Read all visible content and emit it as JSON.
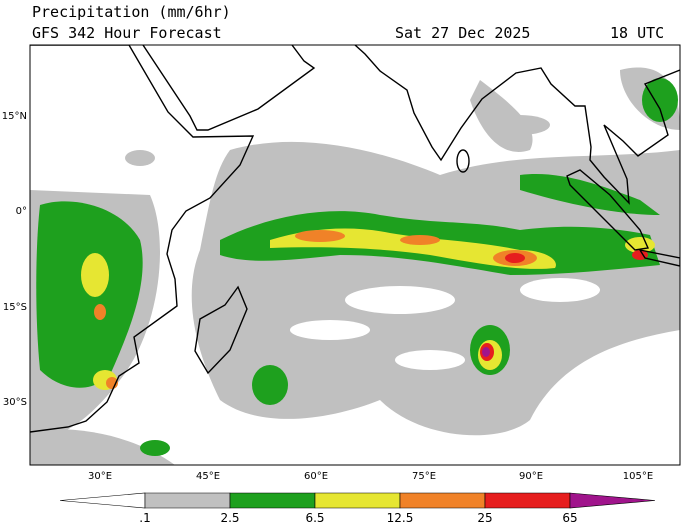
{
  "header": {
    "title": "Precipitation (mm/6hr)",
    "subtitle": "GFS 342 Hour Forecast",
    "date": "Sat 27 Dec 2025",
    "time": "18 UTC"
  },
  "map": {
    "lat_labels": [
      "15°N",
      "0°",
      "15°S",
      "30°S"
    ],
    "lon_labels": [
      "30°E",
      "45°E",
      "60°E",
      "75°E",
      "90°E",
      "105°E"
    ]
  },
  "colorbar": {
    "labels": [
      ".1",
      "2.5",
      "6.5",
      "12.5",
      "25",
      "65"
    ],
    "colors": [
      "#ffffff",
      "#c0c0c0",
      "#1ea01e",
      "#e6e632",
      "#f08228",
      "#e61e1e",
      "#a0148c"
    ]
  }
}
